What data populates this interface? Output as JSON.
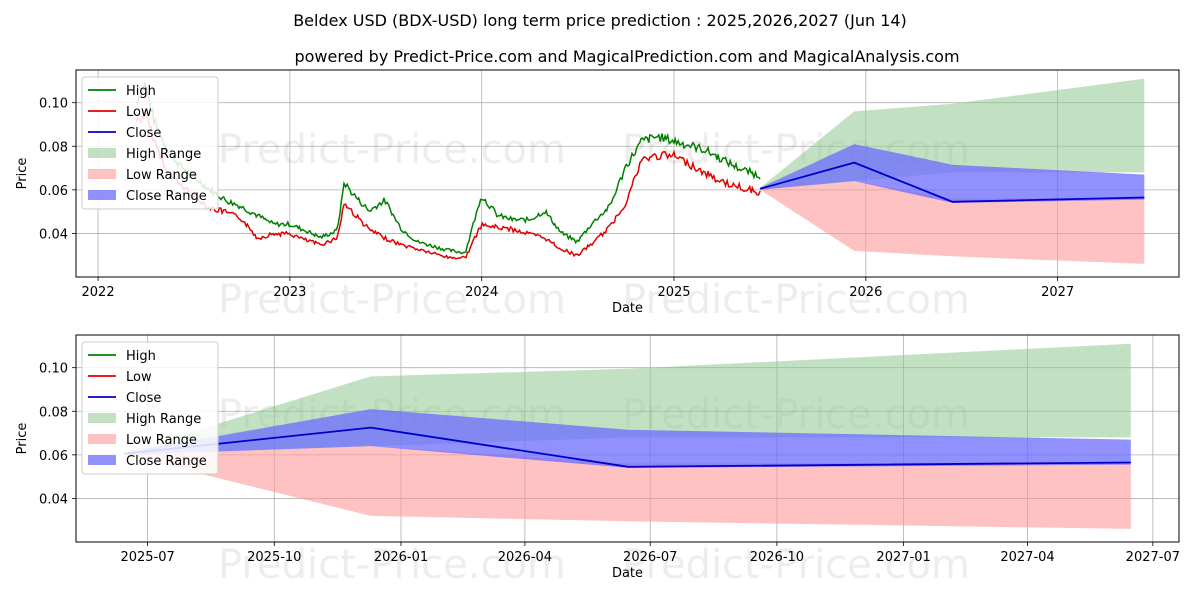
{
  "title": "Beldex USD (BDX-USD) long term price prediction : 2025,2026,2027 (Jun 14)",
  "subtitle": "powered by Predict-Price.com and MagicalPrediction.com and MagicalAnalysis.com",
  "watermark": "Predict-Price.com",
  "colors": {
    "high": "#008000",
    "low": "#e00000",
    "close": "#0000cc",
    "high_range": "#8fc98f",
    "low_range": "#ff9999",
    "close_range": "#6b6bff",
    "grid": "#b0b0b0"
  },
  "chart_data": [
    {
      "type": "line",
      "xlabel": "Date",
      "ylabel": "Price",
      "xlim": [
        "2021-11-20",
        "2027-08-20"
      ],
      "ylim": [
        0.02,
        0.115
      ],
      "x_ticks": [
        "2022",
        "2023",
        "2024",
        "2025",
        "2026",
        "2027"
      ],
      "x_tick_dates": [
        "2022-01-01",
        "2023-01-01",
        "2024-01-01",
        "2025-01-01",
        "2026-01-01",
        "2027-01-01"
      ],
      "y_ticks": [
        "0.04",
        "0.06",
        "0.08",
        "0.10"
      ],
      "y_tick_values": [
        0.04,
        0.06,
        0.08,
        0.1
      ],
      "grid": true,
      "legend_position": "top-left",
      "legend": [
        "High",
        "Low",
        "Close",
        "High Range",
        "Low Range",
        "Close Range"
      ],
      "history": {
        "dates": [
          "2022-03-15",
          "2022-04-01",
          "2022-04-20",
          "2022-05-10",
          "2022-06-01",
          "2022-07-01",
          "2022-08-01",
          "2022-09-01",
          "2022-10-01",
          "2022-11-01",
          "2022-12-01",
          "2023-01-01",
          "2023-02-01",
          "2023-03-01",
          "2023-04-01",
          "2023-04-15",
          "2023-05-01",
          "2023-06-01",
          "2023-07-01",
          "2023-08-01",
          "2023-09-01",
          "2023-10-01",
          "2023-11-01",
          "2023-12-01",
          "2024-01-01",
          "2024-02-01",
          "2024-03-01",
          "2024-04-01",
          "2024-05-01",
          "2024-06-01",
          "2024-07-01",
          "2024-08-01",
          "2024-09-01",
          "2024-10-01",
          "2024-11-01",
          "2024-12-01",
          "2025-01-01",
          "2025-02-01",
          "2025-03-01",
          "2025-04-01",
          "2025-05-01",
          "2025-06-14"
        ],
        "high": [
          0.1,
          0.108,
          0.09,
          0.08,
          0.072,
          0.066,
          0.06,
          0.055,
          0.052,
          0.048,
          0.044,
          0.044,
          0.041,
          0.038,
          0.041,
          0.063,
          0.058,
          0.05,
          0.055,
          0.042,
          0.036,
          0.034,
          0.032,
          0.031,
          0.057,
          0.048,
          0.046,
          0.046,
          0.05,
          0.04,
          0.036,
          0.045,
          0.052,
          0.07,
          0.082,
          0.084,
          0.082,
          0.08,
          0.078,
          0.074,
          0.07,
          0.066
        ],
        "low": [
          0.092,
          0.095,
          0.082,
          0.07,
          0.064,
          0.058,
          0.052,
          0.05,
          0.047,
          0.038,
          0.04,
          0.04,
          0.037,
          0.035,
          0.038,
          0.054,
          0.05,
          0.042,
          0.038,
          0.035,
          0.033,
          0.031,
          0.029,
          0.029,
          0.044,
          0.043,
          0.042,
          0.04,
          0.038,
          0.033,
          0.03,
          0.036,
          0.043,
          0.054,
          0.074,
          0.076,
          0.076,
          0.072,
          0.068,
          0.064,
          0.062,
          0.059
        ]
      },
      "forecast": {
        "dates": [
          "2025-06-14",
          "2025-12-10",
          "2026-06-15",
          "2027-06-15"
        ],
        "close": [
          0.0605,
          0.0725,
          0.0545,
          0.0565
        ],
        "high_range_upper": [
          0.061,
          0.096,
          0.0995,
          0.111
        ],
        "high_range_lower": [
          0.0605,
          0.064,
          0.068,
          0.068
        ],
        "low_range_upper": [
          0.0605,
          0.064,
          0.056,
          0.0565
        ],
        "low_range_lower": [
          0.06,
          0.032,
          0.0295,
          0.026
        ],
        "close_range_upper": [
          0.061,
          0.081,
          0.0715,
          0.067
        ],
        "close_range_lower": [
          0.06,
          0.064,
          0.054,
          0.0555
        ]
      }
    },
    {
      "type": "line",
      "xlabel": "Date",
      "ylabel": "Price",
      "xlim": [
        "2025-05-10",
        "2027-07-20"
      ],
      "ylim": [
        0.02,
        0.115
      ],
      "x_ticks": [
        "2025-07",
        "2025-10",
        "2026-01",
        "2026-04",
        "2026-07",
        "2026-10",
        "2027-01",
        "2027-04",
        "2027-07"
      ],
      "x_tick_dates": [
        "2025-07-01",
        "2025-10-01",
        "2026-01-01",
        "2026-04-01",
        "2026-07-01",
        "2026-10-01",
        "2027-01-01",
        "2027-04-01",
        "2027-07-01"
      ],
      "y_ticks": [
        "0.04",
        "0.06",
        "0.08",
        "0.10"
      ],
      "y_tick_values": [
        0.04,
        0.06,
        0.08,
        0.1
      ],
      "grid": true,
      "legend_position": "top-left",
      "legend": [
        "High",
        "Low",
        "Close",
        "High Range",
        "Low Range",
        "Close Range"
      ],
      "forecast": {
        "dates": [
          "2025-06-14",
          "2025-12-10",
          "2026-06-15",
          "2027-06-15"
        ],
        "close": [
          0.0605,
          0.0725,
          0.0545,
          0.0565
        ],
        "high_range_upper": [
          0.061,
          0.096,
          0.0995,
          0.111
        ],
        "high_range_lower": [
          0.0605,
          0.064,
          0.068,
          0.068
        ],
        "low_range_upper": [
          0.0605,
          0.064,
          0.056,
          0.0565
        ],
        "low_range_lower": [
          0.06,
          0.032,
          0.0295,
          0.026
        ],
        "close_range_upper": [
          0.061,
          0.081,
          0.0715,
          0.067
        ],
        "close_range_lower": [
          0.06,
          0.064,
          0.054,
          0.0555
        ]
      }
    }
  ]
}
